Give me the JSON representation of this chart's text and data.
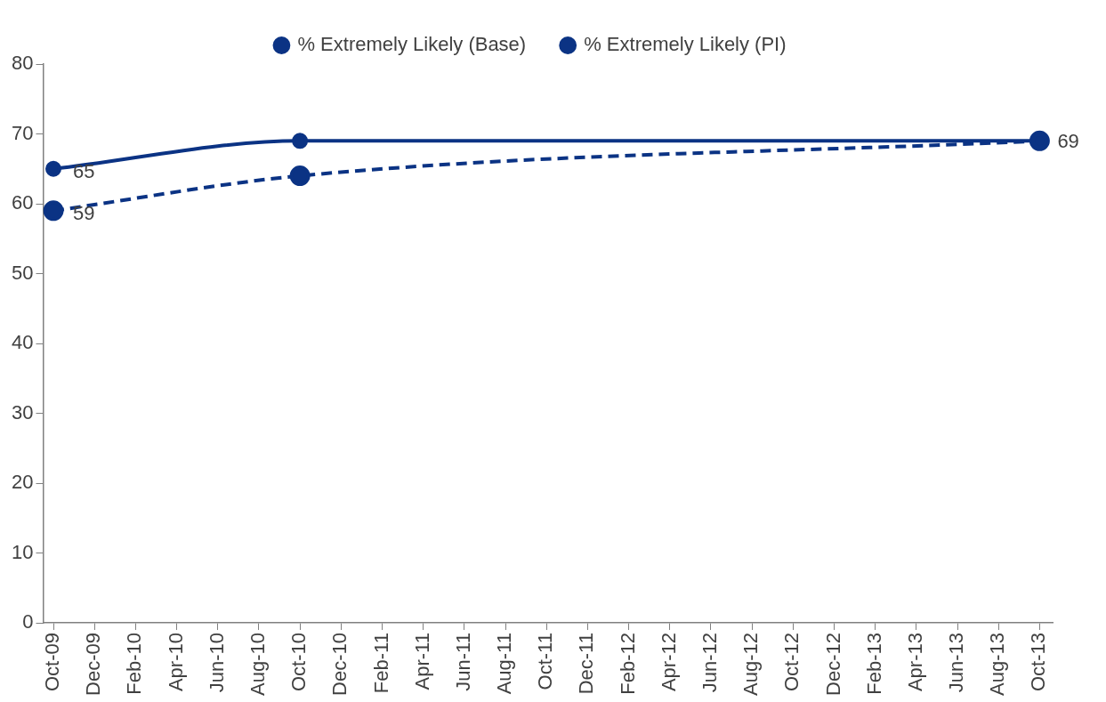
{
  "chart_data": {
    "type": "line",
    "x": [
      "2009-10",
      "2010-10",
      "2013-10"
    ],
    "series": [
      {
        "name": "% Extremely Likely (Base)",
        "color": "#0b3384",
        "line_style": "solid",
        "values": [
          65,
          69,
          69
        ],
        "value_labels": [
          "65",
          null,
          "69"
        ]
      },
      {
        "name": "% Extremely Likely (PI)",
        "color": "#0b3384",
        "line_style": "dashed",
        "values": [
          59,
          64,
          69
        ],
        "value_labels": [
          "59",
          null,
          null
        ]
      }
    ],
    "xlim": [
      "2009-09-16",
      "2013-10-20"
    ],
    "xticks": [
      {
        "value": "2009-10",
        "label": "Oct-09"
      },
      {
        "value": "2009-12",
        "label": "Dec-09"
      },
      {
        "value": "2010-02",
        "label": "Feb-10"
      },
      {
        "value": "2010-04",
        "label": "Apr-10"
      },
      {
        "value": "2010-06",
        "label": "Jun-10"
      },
      {
        "value": "2010-08",
        "label": "Aug-10"
      },
      {
        "value": "2010-10",
        "label": "Oct-10"
      },
      {
        "value": "2010-12",
        "label": "Dec-10"
      },
      {
        "value": "2011-02",
        "label": "Feb-11"
      },
      {
        "value": "2011-04",
        "label": "Apr-11"
      },
      {
        "value": "2011-06",
        "label": "Jun-11"
      },
      {
        "value": "2011-08",
        "label": "Aug-11"
      },
      {
        "value": "2011-10",
        "label": "Oct-11"
      },
      {
        "value": "2011-12",
        "label": "Dec-11"
      },
      {
        "value": "2012-02",
        "label": "Feb-12"
      },
      {
        "value": "2012-04",
        "label": "Apr-12"
      },
      {
        "value": "2012-06",
        "label": "Jun-12"
      },
      {
        "value": "2012-08",
        "label": "Aug-12"
      },
      {
        "value": "2012-10",
        "label": "Oct-12"
      },
      {
        "value": "2012-12",
        "label": "Dec-12"
      },
      {
        "value": "2013-02",
        "label": "Feb-13"
      },
      {
        "value": "2013-04",
        "label": "Apr-13"
      },
      {
        "value": "2013-06",
        "label": "Jun-13"
      },
      {
        "value": "2013-08",
        "label": "Aug-13"
      },
      {
        "value": "2013-10",
        "label": "Oct-13"
      }
    ],
    "ylim": [
      0,
      80
    ],
    "yticks": [
      0,
      10,
      20,
      30,
      40,
      50,
      60,
      70,
      80
    ],
    "grid": false,
    "legend": "top",
    "marker": "circle"
  }
}
